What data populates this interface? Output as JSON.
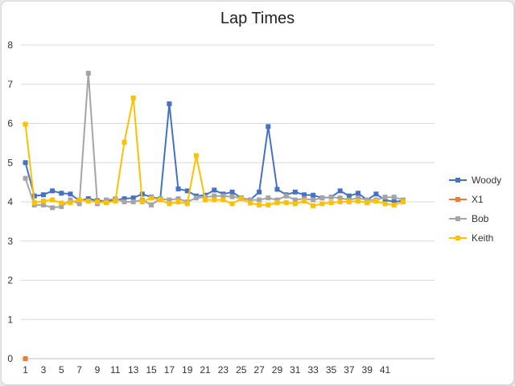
{
  "chart_data": {
    "type": "line",
    "title": "Lap Times",
    "xlabel": "",
    "ylabel": "",
    "ylim": [
      0,
      8
    ],
    "yticks": [
      "0",
      "1",
      "2",
      "3",
      "4",
      "5",
      "6",
      "7",
      "8"
    ],
    "x_tick_labels": [
      "1",
      "3",
      "5",
      "7",
      "9",
      "11",
      "13",
      "15",
      "17",
      "19",
      "21",
      "23",
      "25",
      "27",
      "29",
      "31",
      "33",
      "35",
      "37",
      "39",
      "41"
    ],
    "x_count": 46,
    "grid": "horizontal",
    "legend_position": "right",
    "series": [
      {
        "name": "Woody",
        "color": "#4472c4",
        "values": [
          5.0,
          4.15,
          4.18,
          4.28,
          4.22,
          4.2,
          4.03,
          4.08,
          4.03,
          4.02,
          4.05,
          4.08,
          4.1,
          4.2,
          4.12,
          4.08,
          6.5,
          4.33,
          4.28,
          4.15,
          4.17,
          4.3,
          4.2,
          4.25,
          4.1,
          4.05,
          4.25,
          5.92,
          4.32,
          4.18,
          4.25,
          4.18,
          4.17,
          4.1,
          4.12,
          4.28,
          4.15,
          4.22,
          4.05,
          4.2,
          4.05,
          4.0,
          4.03
        ]
      },
      {
        "name": "X1",
        "color": "#ed7d31",
        "values": [
          0
        ]
      },
      {
        "name": "Bob",
        "color": "#a5a5a5",
        "values": [
          4.6,
          3.92,
          3.92,
          3.85,
          3.88,
          4.05,
          3.95,
          7.28,
          3.95,
          4.05,
          4.08,
          4.0,
          4.0,
          4.05,
          3.92,
          4.08,
          4.05,
          4.08,
          4.0,
          4.1,
          4.12,
          4.15,
          4.15,
          4.13,
          4.1,
          4.05,
          4.05,
          4.1,
          4.05,
          4.15,
          4.05,
          4.08,
          4.05,
          4.1,
          4.12,
          4.1,
          4.05,
          4.1,
          4.05,
          4.05,
          4.12,
          4.12,
          4.05
        ]
      },
      {
        "name": "Keith",
        "color": "#ffc000",
        "values": [
          5.98,
          3.98,
          4.02,
          4.05,
          3.97,
          3.98,
          4.05,
          4.02,
          4.0,
          3.98,
          4.02,
          5.52,
          6.65,
          4.0,
          4.1,
          4.05,
          3.95,
          4.0,
          3.95,
          5.18,
          4.05,
          4.05,
          4.05,
          3.95,
          4.08,
          3.97,
          3.92,
          3.92,
          3.98,
          3.98,
          3.95,
          4.02,
          3.9,
          3.95,
          3.98,
          4.0,
          4.0,
          4.02,
          3.98,
          4.02,
          3.95,
          3.92,
          4.0
        ]
      }
    ]
  }
}
